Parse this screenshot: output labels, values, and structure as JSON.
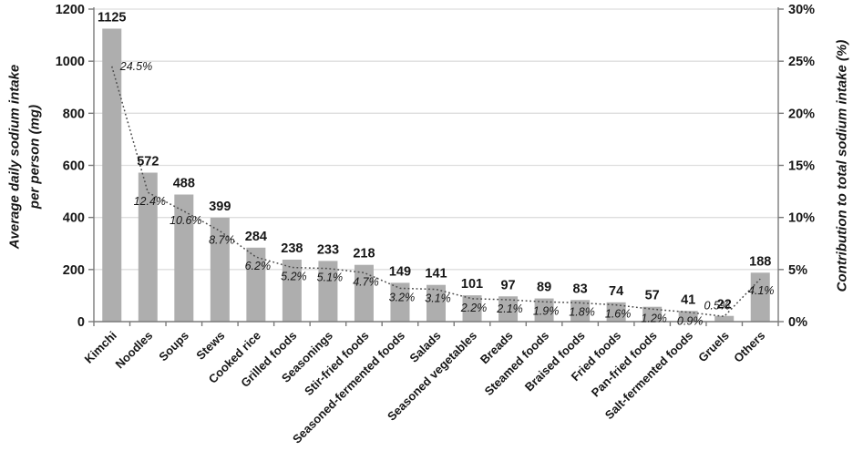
{
  "chart_data": {
    "type": "bar",
    "subtype": "pareto-combo-bar-line",
    "title": "",
    "categories": [
      "Kimchi",
      "Noodles",
      "Soups",
      "Stews",
      "Cooked rice",
      "Grilled foods",
      "Seasonings",
      "Stir-fried foods",
      "Seasoned-fermented foods",
      "Salads",
      "Seasoned vegetables",
      "Breads",
      "Steamed foods",
      "Braised foods",
      "Fried foods",
      "Pan-fried foods",
      "Salt-fermented foods",
      "Gruels",
      "Others"
    ],
    "series": [
      {
        "name": "Average daily sodium intake per person (mg)",
        "type": "bar",
        "axis": "left",
        "values": [
          1125,
          572,
          488,
          399,
          284,
          238,
          233,
          218,
          149,
          141,
          101,
          97,
          89,
          83,
          74,
          57,
          41,
          22,
          188
        ]
      },
      {
        "name": "Contribution to total sodium intake (%)",
        "type": "line",
        "style": "dotted",
        "axis": "right",
        "values": [
          24.5,
          12.4,
          10.6,
          8.7,
          6.2,
          5.2,
          5.1,
          4.7,
          3.2,
          3.1,
          2.2,
          2.1,
          1.9,
          1.8,
          1.6,
          1.2,
          0.9,
          0.5,
          4.1
        ]
      }
    ],
    "left_axis": {
      "title_line1": "Average daily sodium intake",
      "title_line2": "per person (mg)",
      "min": 0,
      "max": 1200,
      "step": 200,
      "ticks": [
        "0",
        "200",
        "400",
        "600",
        "800",
        "1000",
        "1200"
      ]
    },
    "right_axis": {
      "title": "Contribution to total sodium intake (%)",
      "min": 0,
      "max": 30,
      "step": 5,
      "ticks": [
        "0%",
        "5%",
        "10%",
        "15%",
        "20%",
        "25%",
        "30%"
      ]
    },
    "grid": true,
    "legend": "none",
    "colors": {
      "bar": "#aeaeae",
      "line": "#4a4a4a",
      "grid": "#dedede",
      "axis": "#7a7a7a",
      "text": "#161616",
      "pct_label": "#2b2b2b",
      "background": "#ffffff"
    }
  }
}
